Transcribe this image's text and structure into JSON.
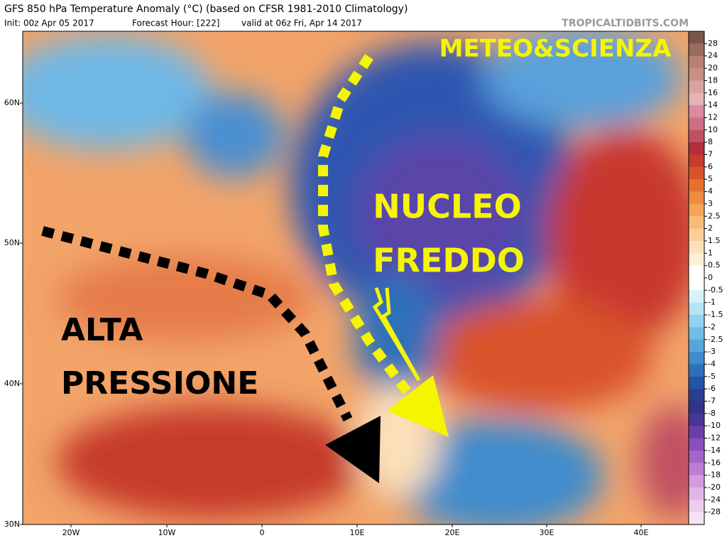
{
  "header": {
    "title": "GFS 850 hPa Temperature Anomaly (°C) (based on CFSR 1981-2010 Climatology)",
    "init": "Init: 00z Apr 05 2017",
    "forecast_hour": "Forecast Hour: [222]",
    "valid": "valid at 06z Fri, Apr 14 2017",
    "watermark": "TROPICALTIDBITS.COM"
  },
  "annotations": {
    "brand": "METEO&SCIENZA",
    "cold_1": "NUCLEO",
    "cold_2": "FREDDO",
    "high_1": "ALTA",
    "high_2": "PRESSIONE"
  },
  "axes": {
    "latitudes": [
      "60N",
      "50N",
      "40N",
      "30N"
    ],
    "longitudes": [
      "20W",
      "10W",
      "0",
      "10E",
      "20E",
      "30E",
      "40E"
    ]
  },
  "colorbar": {
    "labels": [
      "28",
      "24",
      "20",
      "18",
      "16",
      "14",
      "12",
      "10",
      "8",
      "7",
      "6",
      "5",
      "4",
      "3",
      "2.5",
      "2",
      "1.5",
      "1",
      "0.5",
      "0",
      "-0.5",
      "-1",
      "-1.5",
      "-2",
      "-2.5",
      "-3",
      "-4",
      "-5",
      "-6",
      "-7",
      "-8",
      "-10",
      "-12",
      "-14",
      "-16",
      "-18",
      "-20",
      "-24",
      "-28"
    ],
    "colors": [
      "#7a5548",
      "#9b6b5e",
      "#b98173",
      "#c98f87",
      "#d8a3a0",
      "#e3b3b6",
      "#d98ba0",
      "#cf6f86",
      "#c04f63",
      "#b22d3d",
      "#c63b2b",
      "#d9532a",
      "#e6702f",
      "#ef8c3f",
      "#f4a55a",
      "#f7bb78",
      "#f9ce98",
      "#fbe0b9",
      "#fdeed7",
      "#ffffff",
      "#ffffff",
      "#d6f3f8",
      "#b3e6f2",
      "#8fd3ec",
      "#6dbde4",
      "#55a6da",
      "#3f8ccc",
      "#2d70ba",
      "#2355a5",
      "#283f90",
      "#33338a",
      "#4a3598",
      "#6a3fac",
      "#8a4fbd",
      "#a564c9",
      "#bd7dd5",
      "#d19bdf",
      "#e0b6e7",
      "#ebcdee",
      "#f4e2f5"
    ]
  }
}
